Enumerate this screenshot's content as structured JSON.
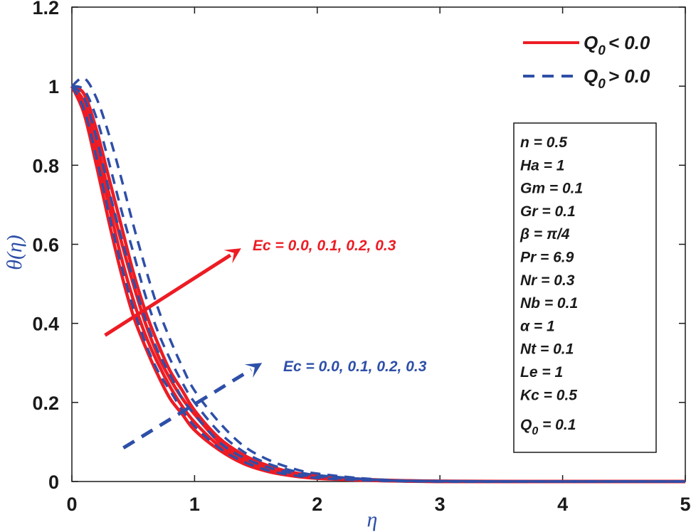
{
  "chart_data": {
    "type": "line",
    "title": "",
    "xlabel": "η",
    "ylabel": "θ(η)",
    "xlim": [
      0,
      5
    ],
    "ylim": [
      0,
      1.2
    ],
    "xticks": [
      "0",
      "1",
      "2",
      "3",
      "4",
      "5"
    ],
    "yticks": [
      "0",
      "0.2",
      "0.4",
      "0.6",
      "0.8",
      "1",
      "1.2"
    ],
    "grid": false,
    "legend_position": "upper right",
    "legend": [
      {
        "label_main": "Q",
        "label_sub": "0",
        "label_rest": " < 0.0",
        "style": "solid",
        "color": "#ed1c24"
      },
      {
        "label_main": "Q",
        "label_sub": "0",
        "label_rest": " > 0.0",
        "style": "dashed",
        "color": "#2e4fa8"
      }
    ],
    "x": [
      0,
      0.1,
      0.2,
      0.3,
      0.4,
      0.5,
      0.6,
      0.7,
      0.8,
      0.9,
      1.0,
      1.2,
      1.4,
      1.6,
      1.8,
      2.0,
      2.5,
      3.0,
      4.0,
      5.0
    ],
    "series": [
      {
        "name": "Q0 < 0.0, Ec = 0.0",
        "style": "solid",
        "color": "#ed1c24",
        "values": [
          1.0,
          0.93,
          0.8,
          0.66,
          0.53,
          0.42,
          0.34,
          0.27,
          0.21,
          0.17,
          0.13,
          0.08,
          0.045,
          0.025,
          0.014,
          0.008,
          0.002,
          0.0,
          0.0,
          0.0
        ]
      },
      {
        "name": "Q0 < 0.0, Ec = 0.1",
        "style": "solid",
        "color": "#ed1c24",
        "values": [
          1.0,
          0.95,
          0.83,
          0.7,
          0.57,
          0.46,
          0.37,
          0.3,
          0.24,
          0.19,
          0.15,
          0.09,
          0.052,
          0.03,
          0.017,
          0.01,
          0.003,
          0.0,
          0.0,
          0.0
        ]
      },
      {
        "name": "Q0 < 0.0, Ec = 0.2",
        "style": "solid",
        "color": "#ed1c24",
        "values": [
          1.0,
          0.96,
          0.86,
          0.73,
          0.61,
          0.5,
          0.4,
          0.32,
          0.26,
          0.21,
          0.17,
          0.1,
          0.06,
          0.035,
          0.02,
          0.012,
          0.003,
          0.0,
          0.0,
          0.0
        ]
      },
      {
        "name": "Q0 < 0.0, Ec = 0.3",
        "style": "solid",
        "color": "#ed1c24",
        "values": [
          1.0,
          0.98,
          0.89,
          0.77,
          0.65,
          0.53,
          0.43,
          0.35,
          0.28,
          0.23,
          0.18,
          0.11,
          0.067,
          0.04,
          0.023,
          0.014,
          0.004,
          0.001,
          0.0,
          0.0
        ]
      },
      {
        "name": "Q0 > 0.0, Ec = 0.0",
        "style": "dashed",
        "color": "#2e4fa8",
        "values": [
          1.0,
          0.94,
          0.82,
          0.68,
          0.55,
          0.44,
          0.35,
          0.28,
          0.23,
          0.18,
          0.14,
          0.085,
          0.05,
          0.028,
          0.016,
          0.009,
          0.002,
          0.0,
          0.0,
          0.0
        ]
      },
      {
        "name": "Q0 > 0.0, Ec = 0.1",
        "style": "dashed",
        "color": "#2e4fa8",
        "values": [
          1.0,
          0.97,
          0.87,
          0.74,
          0.62,
          0.51,
          0.41,
          0.33,
          0.27,
          0.21,
          0.17,
          0.1,
          0.06,
          0.036,
          0.021,
          0.012,
          0.003,
          0.0,
          0.0,
          0.0
        ]
      },
      {
        "name": "Q0 > 0.0, Ec = 0.2",
        "style": "dashed",
        "color": "#2e4fa8",
        "values": [
          1.0,
          0.99,
          0.92,
          0.81,
          0.69,
          0.58,
          0.47,
          0.38,
          0.31,
          0.25,
          0.2,
          0.125,
          0.075,
          0.045,
          0.027,
          0.016,
          0.004,
          0.001,
          0.0,
          0.0
        ]
      },
      {
        "name": "Q0 > 0.0, Ec = 0.3",
        "style": "dashed",
        "color": "#2e4fa8",
        "values": [
          1.0,
          1.02,
          0.97,
          0.88,
          0.77,
          0.65,
          0.54,
          0.44,
          0.36,
          0.29,
          0.23,
          0.15,
          0.09,
          0.055,
          0.033,
          0.02,
          0.005,
          0.001,
          0.0,
          0.0
        ]
      }
    ],
    "annotations": [
      {
        "text": "Ec = 0.0, 0.1, 0.2, 0.3",
        "color": "#ed1c24",
        "arrow_style": "solid",
        "arrow_from": [
          0.27,
          0.37
        ],
        "arrow_to": [
          1.38,
          0.59
        ],
        "text_pos": [
          1.47,
          0.595
        ]
      },
      {
        "text": "Ec = 0.0, 0.1, 0.2, 0.3",
        "color": "#2e4fa8",
        "arrow_style": "dashed",
        "arrow_from": [
          0.42,
          0.085
        ],
        "arrow_to": [
          1.55,
          0.3
        ],
        "text_pos": [
          1.72,
          0.29
        ]
      }
    ],
    "parameters_box": [
      {
        "name": "n",
        "value": "0.5"
      },
      {
        "name": "Ha",
        "value": "1"
      },
      {
        "name": "Gm",
        "value": "0.1"
      },
      {
        "name": "Gr",
        "value": "0.1"
      },
      {
        "name": "β",
        "value": "π/4"
      },
      {
        "name": "Pr",
        "value": "6.9"
      },
      {
        "name": "Nr",
        "value": "0.3"
      },
      {
        "name": "Nb",
        "value": "0.1"
      },
      {
        "name": "α",
        "value": "1"
      },
      {
        "name": "Nt",
        "value": "0.1"
      },
      {
        "name": "Le",
        "value": "1"
      },
      {
        "name": "Kc",
        "value": "0.5"
      },
      {
        "name": "Q0",
        "value": "0.1"
      }
    ]
  },
  "labels": {
    "xlabel": "η",
    "ylabel": "θ(η)",
    "legend_1": "< 0.0",
    "legend_2": "> 0.0",
    "legend_q": "Q",
    "legend_sub": "0",
    "anno_red": "Ec = 0.0, 0.1, 0.2, 0.3",
    "anno_blue": "Ec = 0.0, 0.1, 0.2, 0.3",
    "params": [
      "n = 0.5",
      "Ha = 1",
      "Gm = 0.1",
      "Gr = 0.1",
      "β = π/4",
      "Pr = 6.9",
      "Nr = 0.3",
      "Nb = 0.1",
      "α = 1",
      "Nt = 0.1",
      "Le = 1",
      "Kc = 0.5"
    ],
    "param_q_main": "Q",
    "param_q_sub": "0",
    "param_q_rest": " = 0.1"
  }
}
